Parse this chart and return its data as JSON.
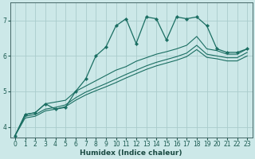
{
  "xlabel": "Humidex (Indice chaleur)",
  "background_color": "#cce8e8",
  "grid_color": "#aacccc",
  "line_color": "#1a6e62",
  "xlim_min": -0.5,
  "xlim_max": 23.5,
  "ylim_min": 3.7,
  "ylim_max": 7.5,
  "yticks": [
    4,
    5,
    6,
    7
  ],
  "xticks": [
    0,
    1,
    2,
    3,
    4,
    5,
    6,
    7,
    8,
    9,
    10,
    11,
    12,
    13,
    14,
    15,
    16,
    17,
    18,
    19,
    20,
    21,
    22,
    23
  ],
  "series_main": {
    "x": [
      0,
      1,
      2,
      3,
      4,
      5,
      6,
      7,
      8,
      9,
      10,
      11,
      12,
      13,
      14,
      15,
      16,
      17,
      18,
      19,
      20,
      21,
      22,
      23
    ],
    "y": [
      3.75,
      4.35,
      4.4,
      4.65,
      4.5,
      4.55,
      5.0,
      5.35,
      6.0,
      6.25,
      6.85,
      7.05,
      6.35,
      7.1,
      7.05,
      6.45,
      7.1,
      7.05,
      7.1,
      6.85,
      6.2,
      6.1,
      6.1,
      6.2
    ]
  },
  "series_smooth": [
    {
      "x": [
        0,
        1,
        2,
        3,
        4,
        5,
        6,
        7,
        8,
        9,
        10,
        11,
        12,
        13,
        14,
        15,
        16,
        17,
        18,
        19,
        20,
        21,
        22,
        23
      ],
      "y": [
        3.75,
        4.35,
        4.4,
        4.65,
        4.7,
        4.75,
        5.0,
        5.15,
        5.3,
        5.45,
        5.6,
        5.7,
        5.85,
        5.95,
        6.05,
        6.12,
        6.2,
        6.3,
        6.55,
        6.2,
        6.15,
        6.05,
        6.05,
        6.2
      ]
    },
    {
      "x": [
        0,
        1,
        2,
        3,
        4,
        5,
        6,
        7,
        8,
        9,
        10,
        11,
        12,
        13,
        14,
        15,
        16,
        17,
        18,
        19,
        20,
        21,
        22,
        23
      ],
      "y": [
        3.75,
        4.3,
        4.35,
        4.5,
        4.55,
        4.62,
        4.82,
        4.98,
        5.1,
        5.22,
        5.35,
        5.48,
        5.6,
        5.72,
        5.82,
        5.9,
        5.98,
        6.08,
        6.3,
        6.05,
        6.0,
        5.95,
        5.95,
        6.1
      ]
    },
    {
      "x": [
        0,
        1,
        2,
        3,
        4,
        5,
        6,
        7,
        8,
        9,
        10,
        11,
        12,
        13,
        14,
        15,
        16,
        17,
        18,
        19,
        20,
        21,
        22,
        23
      ],
      "y": [
        3.75,
        4.25,
        4.3,
        4.45,
        4.5,
        4.57,
        4.75,
        4.9,
        5.02,
        5.13,
        5.25,
        5.38,
        5.5,
        5.62,
        5.72,
        5.8,
        5.88,
        5.98,
        6.18,
        5.96,
        5.92,
        5.86,
        5.86,
        6.0
      ]
    }
  ]
}
